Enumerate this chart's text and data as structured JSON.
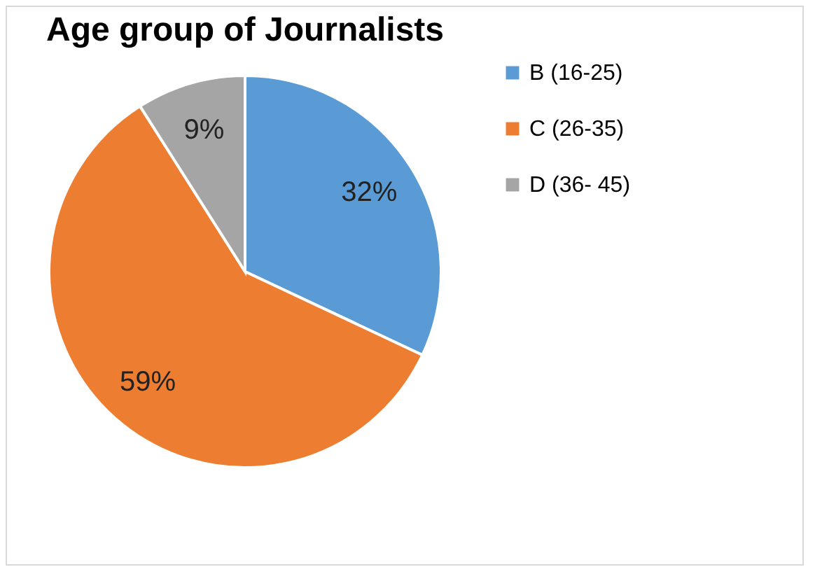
{
  "chart_data": {
    "type": "pie",
    "title": "Age group of Journalists",
    "categories": [
      "B (16-25)",
      "C (26-35)",
      "D (36- 45)"
    ],
    "values": [
      32,
      59,
      9
    ],
    "colors": [
      "#5b9bd5",
      "#ed7d31",
      "#a5a5a5"
    ],
    "value_labels": [
      "32%",
      "59%",
      "9%"
    ],
    "legend": "right"
  }
}
